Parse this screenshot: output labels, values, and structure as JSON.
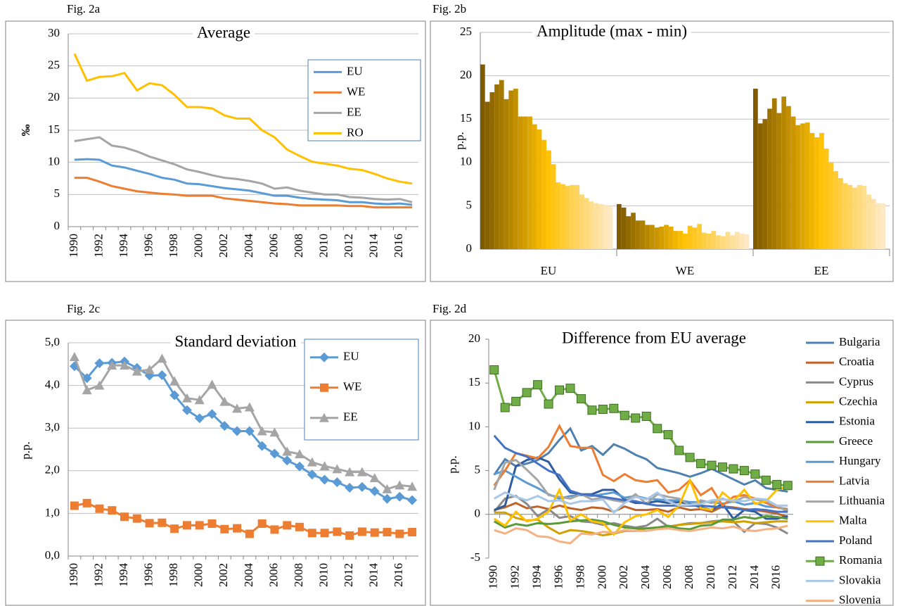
{
  "chart_data": [
    {
      "type": "line",
      "figure": "Fig. 2a",
      "title": "Average",
      "y_label": "‰",
      "categories": [
        "1990",
        null,
        "1992",
        null,
        "1994",
        null,
        "1996",
        null,
        "1998",
        null,
        "2000",
        null,
        "2002",
        null,
        "2004",
        null,
        "2006",
        null,
        "2008",
        null,
        "2010",
        null,
        "2012",
        null,
        "2014",
        null,
        "2016",
        null
      ],
      "ylim": [
        0,
        30
      ],
      "yticks": [
        0,
        5,
        10,
        15,
        20,
        25,
        30
      ],
      "grid": true,
      "legend": "upper right",
      "series": [
        {
          "name": "EU",
          "color": "#5b9bd5",
          "values": [
            10.4,
            10.5,
            10.4,
            9.5,
            9.2,
            8.7,
            8.2,
            7.6,
            7.3,
            6.7,
            6.6,
            6.3,
            6.0,
            5.8,
            5.6,
            5.2,
            4.8,
            4.8,
            4.5,
            4.3,
            4.2,
            4.1,
            3.8,
            3.8,
            3.6,
            3.5,
            3.6,
            3.4
          ]
        },
        {
          "name": "WE",
          "color": "#ed7d31",
          "values": [
            7.6,
            7.6,
            7.0,
            6.3,
            5.9,
            5.5,
            5.3,
            5.1,
            5.0,
            4.8,
            4.8,
            4.8,
            4.4,
            4.2,
            4.0,
            3.8,
            3.6,
            3.5,
            3.3,
            3.3,
            3.3,
            3.3,
            3.2,
            3.2,
            3.0,
            3.0,
            3.0,
            3.0
          ]
        },
        {
          "name": "EE",
          "color": "#a5a5a5",
          "values": [
            13.3,
            13.6,
            13.9,
            12.6,
            12.3,
            11.7,
            10.9,
            10.3,
            9.7,
            8.9,
            8.5,
            8.0,
            7.6,
            7.4,
            7.1,
            6.7,
            5.9,
            6.1,
            5.6,
            5.3,
            5.0,
            5.0,
            4.6,
            4.5,
            4.3,
            4.2,
            4.3,
            3.8
          ]
        },
        {
          "name": "RO",
          "color": "#ffc000",
          "values": [
            26.9,
            22.7,
            23.3,
            23.4,
            23.9,
            21.2,
            22.3,
            22.0,
            20.5,
            18.6,
            18.6,
            18.4,
            17.3,
            16.8,
            16.8,
            15.0,
            13.9,
            12.0,
            11.0,
            10.1,
            9.8,
            9.5,
            9.0,
            8.8,
            8.2,
            7.5,
            7.0,
            6.7
          ]
        }
      ]
    },
    {
      "type": "bar",
      "figure": "Fig. 2b",
      "title": "Amplitude (max - min)",
      "y_label": "p.p.",
      "ylim": [
        0,
        25
      ],
      "yticks": [
        0,
        5,
        10,
        15,
        20,
        25
      ],
      "grid": true,
      "colors": [
        "#7f5a00",
        "#ffc000",
        "#fde9c6"
      ],
      "groups": [
        {
          "name": "EU",
          "values": [
            21.3,
            17.0,
            18.1,
            19.0,
            19.5,
            17.3,
            18.3,
            18.5,
            15.3,
            15.3,
            15.3,
            14.4,
            13.8,
            12.6,
            11.4,
            9.8,
            7.7,
            7.5,
            7.3,
            7.4,
            7.4,
            6.3,
            5.9,
            5.5,
            5.3,
            5.2,
            5.1,
            5.0
          ]
        },
        {
          "name": "WE",
          "values": [
            5.2,
            4.8,
            3.8,
            4.2,
            3.3,
            3.3,
            2.8,
            2.8,
            2.5,
            2.6,
            2.8,
            2.6,
            2.1,
            2.1,
            1.8,
            2.7,
            2.5,
            2.9,
            1.9,
            1.8,
            2.1,
            1.6,
            1.5,
            2.0,
            1.6,
            2.0,
            1.8,
            1.7
          ]
        },
        {
          "name": "EE",
          "values": [
            18.5,
            14.5,
            15.0,
            16.2,
            17.4,
            15.7,
            17.6,
            16.5,
            15.3,
            14.3,
            14.5,
            14.6,
            13.4,
            12.9,
            13.4,
            11.6,
            10.0,
            9.0,
            8.2,
            7.6,
            7.4,
            7.1,
            7.4,
            7.3,
            6.3,
            5.8,
            5.3,
            5.3
          ]
        }
      ]
    },
    {
      "type": "line",
      "figure": "Fig. 2c",
      "title": "Standard deviation",
      "y_label": "p.p.",
      "categories": [
        "1990",
        null,
        "1992",
        null,
        "1994",
        null,
        "1996",
        null,
        "1998",
        null,
        "2000",
        null,
        "2002",
        null,
        "2004",
        null,
        "2006",
        null,
        "2008",
        null,
        "2010",
        null,
        "2012",
        null,
        "2014",
        null,
        "2016",
        null
      ],
      "ylim": [
        0,
        5
      ],
      "yticks": [
        {
          "value": 0,
          "label": "0,0"
        },
        {
          "value": 1,
          "label": "1,0"
        },
        {
          "value": 2,
          "label": "2,0"
        },
        {
          "value": 3,
          "label": "3,0"
        },
        {
          "value": 4,
          "label": "4,0"
        },
        {
          "value": 5,
          "label": "5,0"
        }
      ],
      "grid": true,
      "legend": "upper right",
      "series": [
        {
          "name": "EU",
          "color": "#5b9bd5",
          "marker": "diamond",
          "values": [
            4.45,
            4.17,
            4.52,
            4.53,
            4.56,
            4.41,
            4.23,
            4.24,
            3.77,
            3.42,
            3.23,
            3.33,
            3.05,
            2.93,
            2.93,
            2.58,
            2.4,
            2.24,
            2.1,
            1.91,
            1.79,
            1.73,
            1.6,
            1.62,
            1.52,
            1.34,
            1.39,
            1.31
          ]
        },
        {
          "name": "WE",
          "color": "#ed7d31",
          "marker": "square",
          "values": [
            1.18,
            1.24,
            1.11,
            1.07,
            0.92,
            0.88,
            0.77,
            0.78,
            0.64,
            0.72,
            0.72,
            0.76,
            0.63,
            0.65,
            0.52,
            0.76,
            0.62,
            0.72,
            0.68,
            0.54,
            0.54,
            0.57,
            0.48,
            0.57,
            0.55,
            0.56,
            0.52,
            0.56
          ]
        },
        {
          "name": "EE",
          "color": "#a5a5a5",
          "marker": "triangle",
          "values": [
            4.67,
            3.89,
            4.0,
            4.47,
            4.47,
            4.33,
            4.37,
            4.63,
            4.1,
            3.7,
            3.66,
            4.02,
            3.62,
            3.46,
            3.49,
            2.93,
            2.9,
            2.45,
            2.39,
            2.2,
            2.11,
            2.04,
            1.97,
            1.97,
            1.83,
            1.57,
            1.66,
            1.63
          ]
        }
      ]
    },
    {
      "type": "line",
      "figure": "Fig. 2d",
      "title": "Difference from EU average",
      "y_label": "p.p.",
      "categories": [
        "1990",
        null,
        "1992",
        null,
        "1994",
        null,
        "1996",
        null,
        "1998",
        null,
        "2000",
        null,
        "2002",
        null,
        "2004",
        null,
        "2006",
        null,
        "2008",
        null,
        "2010",
        null,
        "2012",
        null,
        "2014",
        null,
        "2016",
        null
      ],
      "ylim": [
        -5,
        20
      ],
      "yticks": [
        -5,
        0,
        5,
        10,
        15,
        20
      ],
      "grid": false,
      "legend": "right",
      "series": [
        {
          "name": "Bulgaria",
          "color": "#4f81b0",
          "values": [
            4.5,
            6.3,
            5.5,
            5.8,
            6.2,
            7.0,
            8.5,
            9.8,
            7.3,
            7.8,
            6.8,
            8.0,
            7.5,
            6.8,
            6.3,
            5.3,
            5.0,
            4.7,
            4.3,
            4.7,
            5.2,
            4.6,
            4.0,
            3.4,
            3.9,
            3.0,
            2.8,
            2.6
          ]
        },
        {
          "name": "Croatia",
          "color": "#c0622b",
          "values": [
            0.5,
            0.8,
            1.3,
            0.7,
            0.9,
            0.6,
            1.0,
            0.7,
            0.5,
            0.8,
            0.7,
            0.3,
            0.9,
            0.5,
            0.5,
            0.6,
            0.3,
            0.8,
            0.5,
            0.6,
            0.3,
            0.9,
            0.8,
            0.6,
            0.5,
            0.3,
            0.1,
            -0.3
          ]
        },
        {
          "name": "Cyprus",
          "color": "#8a8a8a",
          "values": [
            0.3,
            1.8,
            2.1,
            1.2,
            -0.2,
            0.6,
            -0.4,
            -0.2,
            -0.8,
            -0.9,
            -1.2,
            -1.0,
            -1.3,
            -1.5,
            -1.3,
            -0.5,
            -1.4,
            -1.2,
            -1.0,
            -1.0,
            -0.8,
            -0.7,
            -0.8,
            -2.0,
            -1.0,
            -1.1,
            -1.5,
            -2.2
          ]
        },
        {
          "name": "Czechia",
          "color": "#d2a000",
          "values": [
            0.2,
            0.2,
            -0.4,
            -0.7,
            -0.6,
            -1.5,
            -2.2,
            -1.8,
            -1.9,
            -2.1,
            -2.4,
            -2.2,
            -1.9,
            -1.9,
            -1.6,
            -1.5,
            -1.5,
            -1.2,
            -1.1,
            -1.0,
            -0.9,
            -0.8,
            -0.9,
            -0.8,
            -1.0,
            -0.9,
            -0.8,
            -0.8
          ]
        },
        {
          "name": "Estonia",
          "color": "#2e5b9e",
          "values": [
            0.5,
            1.0,
            5.5,
            6.2,
            6.5,
            6.0,
            4.0,
            2.5,
            2.3,
            2.3,
            2.8,
            2.8,
            1.7,
            1.3,
            1.3,
            1.5,
            1.3,
            1.4,
            1.2,
            0.8,
            0.5,
            1.2,
            -0.5,
            0.5,
            0.3,
            -0.5,
            -0.5,
            -0.2
          ]
        },
        {
          "name": "Greece",
          "color": "#5a9a3a",
          "values": [
            -0.8,
            -1.5,
            -1.1,
            -1.3,
            -1.0,
            -1.1,
            -1.0,
            -0.8,
            -0.7,
            -0.6,
            -0.8,
            -1.2,
            -1.5,
            -1.6,
            -1.6,
            -1.5,
            -1.3,
            -1.6,
            -1.7,
            -1.3,
            -1.2,
            -0.6,
            -0.6,
            -0.3,
            -0.5,
            -0.2,
            -0.3,
            -0.5
          ]
        },
        {
          "name": "Hungary",
          "color": "#5b9bd5",
          "values": [
            4.6,
            5.0,
            4.3,
            3.6,
            3.0,
            2.3,
            1.8,
            2.1,
            2.2,
            2.1,
            2.3,
            2.5,
            1.9,
            2.1,
            1.8,
            1.7,
            1.6,
            1.6,
            1.4,
            1.4,
            1.4,
            1.2,
            1.5,
            1.1,
            1.3,
            0.9,
            0.8,
            0.6
          ]
        },
        {
          "name": "Latvia",
          "color": "#ed7d31",
          "values": [
            3.3,
            5.0,
            7.0,
            6.7,
            6.4,
            7.7,
            10.1,
            7.8,
            7.6,
            7.6,
            4.5,
            3.8,
            4.6,
            3.9,
            3.7,
            3.9,
            2.5,
            2.8,
            3.9,
            2.2,
            3.0,
            1.0,
            2.0,
            2.2,
            1.8,
            1.3,
            0.8,
            0.5
          ]
        },
        {
          "name": "Lithuania",
          "color": "#a5a5a5",
          "values": [
            2.8,
            5.9,
            6.2,
            5.1,
            3.9,
            2.2,
            2.0,
            1.8,
            2.3,
            1.7,
            1.9,
            1.6,
            1.4,
            2.3,
            1.2,
            2.3,
            2.0,
            1.8,
            1.0,
            1.6,
            1.3,
            1.8,
            1.4,
            2.0,
            1.7,
            1.5,
            1.0,
            0.3
          ]
        },
        {
          "name": "Malta",
          "color": "#ffc000",
          "values": [
            -0.5,
            -1.3,
            0.3,
            -0.8,
            -0.5,
            0.3,
            2.8,
            -0.7,
            0,
            -0.8,
            -1.0,
            -2.3,
            -0.9,
            -0.2,
            0,
            0.5,
            -0.3,
            1.0,
            3.9,
            0.7,
            0.5,
            2.5,
            1.5,
            2.8,
            1.2,
            1.5,
            2.8,
            3.2
          ]
        },
        {
          "name": "Poland",
          "color": "#4472c4",
          "values": [
            9.0,
            7.6,
            7.0,
            6.6,
            5.8,
            5.0,
            4.5,
            2.7,
            2.3,
            2.2,
            2.0,
            1.8,
            1.6,
            1.5,
            1.2,
            1.0,
            1.0,
            1.0,
            1.0,
            1.0,
            0.9,
            0.8,
            0.7,
            0.5,
            0.6,
            0.5,
            0.3,
            0.3
          ]
        },
        {
          "name": "Romania",
          "color": "#70ad47",
          "marker": "square",
          "values": [
            16.5,
            12.2,
            12.9,
            13.9,
            14.8,
            12.6,
            14.2,
            14.4,
            13.2,
            11.9,
            12.0,
            12.1,
            11.3,
            11.0,
            11.2,
            9.8,
            9.1,
            7.3,
            6.5,
            5.8,
            5.6,
            5.4,
            5.2,
            5.0,
            4.6,
            3.9,
            3.4,
            3.3
          ]
        },
        {
          "name": "Slovakia",
          "color": "#a9c8e8",
          "values": [
            1.8,
            2.5,
            2.0,
            1.6,
            2.1,
            1.5,
            1.6,
            1.2,
            1.5,
            1.5,
            1.7,
            0.2,
            1.3,
            2.0,
            1.7,
            2.5,
            1.5,
            1.0,
            1.1,
            1.2,
            1.6,
            1.7,
            1.6,
            1.5,
            1.8,
            1.7,
            1.0,
            1.0
          ]
        },
        {
          "name": "Slovenia",
          "color": "#f4b183",
          "values": [
            -1.8,
            -2.2,
            -1.6,
            -1.8,
            -2.5,
            -2.6,
            -3.1,
            -3.3,
            -2.2,
            -2.3,
            -2.0,
            -2.1,
            -1.8,
            -1.9,
            -1.9,
            -1.7,
            -1.6,
            -1.8,
            -1.9,
            -1.7,
            -1.5,
            -1.6,
            -1.4,
            -1.8,
            -1.9,
            -1.7,
            -1.6,
            -1.3
          ]
        }
      ]
    }
  ]
}
